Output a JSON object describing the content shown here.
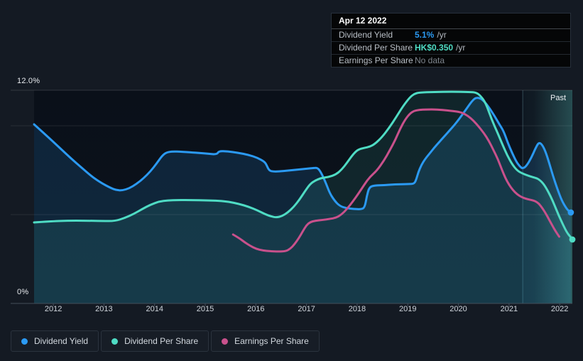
{
  "past_label": "Past",
  "axis": {
    "y_top_label": "12.0%",
    "y_bottom_label": "0%"
  },
  "tooltip": {
    "date": "Apr 12 2022",
    "rows": [
      {
        "label": "Dividend Yield",
        "value": "5.1%",
        "unit": "/yr",
        "value_color": "#2b9af3",
        "muted": false
      },
      {
        "label": "Dividend Per Share",
        "value": "HK$0.350",
        "unit": "/yr",
        "value_color": "#4fdcc4",
        "muted": false
      },
      {
        "label": "Earnings Per Share",
        "value": "No data",
        "unit": "",
        "value_color": "#7d848c",
        "muted": true
      }
    ]
  },
  "legend": [
    {
      "label": "Dividend Yield",
      "color": "#2b9af3"
    },
    {
      "label": "Dividend Per Share",
      "color": "#4fdcc4"
    },
    {
      "label": "Earnings Per Share",
      "color": "#c9518c"
    }
  ],
  "chart_data": {
    "type": "line",
    "title": "Dividend history (past) — hovered at Apr 12 2022",
    "x_axis": {
      "range": [
        2011.62,
        2022.25
      ],
      "ticks": [
        2012,
        2013,
        2014,
        2015,
        2016,
        2017,
        2018,
        2019,
        2020,
        2021,
        2022
      ]
    },
    "y_axis": {
      "range": [
        0,
        12
      ],
      "unit": "%",
      "top_label": "12.0%",
      "bottom_label": "0%",
      "gridline_values": [
        12,
        10,
        5,
        0
      ]
    },
    "past_region_start": 2021.27,
    "hover_values": {
      "dividend_yield_pct": 5.1,
      "dividend_per_share": "HK$0.350",
      "earnings_per_share": null
    },
    "series": [
      {
        "name": "Dividend Yield",
        "color": "#2b9af3",
        "fill": "rgba(43,154,243,0.15)",
        "end_dot": true,
        "points": [
          [
            2011.62,
            10.08
          ],
          [
            2011.76,
            9.72
          ],
          [
            2011.93,
            9.28
          ],
          [
            2012.14,
            8.72
          ],
          [
            2012.35,
            8.16
          ],
          [
            2012.56,
            7.64
          ],
          [
            2012.77,
            7.12
          ],
          [
            2012.96,
            6.76
          ],
          [
            2013.12,
            6.52
          ],
          [
            2013.24,
            6.38
          ],
          [
            2013.36,
            6.36
          ],
          [
            2013.5,
            6.48
          ],
          [
            2013.64,
            6.72
          ],
          [
            2013.78,
            7.04
          ],
          [
            2013.92,
            7.44
          ],
          [
            2014.04,
            7.88
          ],
          [
            2014.15,
            8.32
          ],
          [
            2014.23,
            8.5
          ],
          [
            2014.35,
            8.56
          ],
          [
            2014.53,
            8.54
          ],
          [
            2014.74,
            8.5
          ],
          [
            2015.02,
            8.44
          ],
          [
            2015.23,
            8.38
          ],
          [
            2015.27,
            8.58
          ],
          [
            2015.44,
            8.56
          ],
          [
            2015.65,
            8.48
          ],
          [
            2015.86,
            8.36
          ],
          [
            2016.03,
            8.2
          ],
          [
            2016.17,
            7.98
          ],
          [
            2016.21,
            7.8
          ],
          [
            2016.26,
            7.48
          ],
          [
            2016.35,
            7.42
          ],
          [
            2016.49,
            7.44
          ],
          [
            2016.71,
            7.5
          ],
          [
            2016.92,
            7.56
          ],
          [
            2017.13,
            7.62
          ],
          [
            2017.22,
            7.64
          ],
          [
            2017.29,
            7.36
          ],
          [
            2017.38,
            6.8
          ],
          [
            2017.46,
            6.2
          ],
          [
            2017.56,
            5.76
          ],
          [
            2017.66,
            5.48
          ],
          [
            2017.79,
            5.36
          ],
          [
            2017.93,
            5.32
          ],
          [
            2018.08,
            5.3
          ],
          [
            2018.15,
            5.4
          ],
          [
            2018.19,
            6.04
          ],
          [
            2018.24,
            6.56
          ],
          [
            2018.35,
            6.64
          ],
          [
            2018.53,
            6.66
          ],
          [
            2018.74,
            6.7
          ],
          [
            2019.02,
            6.72
          ],
          [
            2019.13,
            6.74
          ],
          [
            2019.17,
            7.0
          ],
          [
            2019.21,
            7.4
          ],
          [
            2019.27,
            7.8
          ],
          [
            2019.34,
            8.12
          ],
          [
            2019.42,
            8.4
          ],
          [
            2019.52,
            8.76
          ],
          [
            2019.62,
            9.08
          ],
          [
            2019.72,
            9.4
          ],
          [
            2019.82,
            9.72
          ],
          [
            2019.92,
            10.04
          ],
          [
            2020.02,
            10.4
          ],
          [
            2020.1,
            10.72
          ],
          [
            2020.19,
            11.08
          ],
          [
            2020.26,
            11.36
          ],
          [
            2020.33,
            11.56
          ],
          [
            2020.4,
            11.58
          ],
          [
            2020.47,
            11.48
          ],
          [
            2020.55,
            11.24
          ],
          [
            2020.63,
            10.92
          ],
          [
            2020.72,
            10.52
          ],
          [
            2020.8,
            10.12
          ],
          [
            2020.89,
            9.72
          ],
          [
            2020.97,
            9.08
          ],
          [
            2021.06,
            8.48
          ],
          [
            2021.14,
            8.0
          ],
          [
            2021.21,
            7.72
          ],
          [
            2021.27,
            7.58
          ],
          [
            2021.35,
            7.76
          ],
          [
            2021.44,
            8.2
          ],
          [
            2021.52,
            8.72
          ],
          [
            2021.59,
            9.08
          ],
          [
            2021.66,
            8.92
          ],
          [
            2021.73,
            8.48
          ],
          [
            2021.8,
            7.84
          ],
          [
            2021.87,
            7.16
          ],
          [
            2021.96,
            6.4
          ],
          [
            2022.04,
            5.8
          ],
          [
            2022.13,
            5.36
          ],
          [
            2022.18,
            5.2
          ],
          [
            2022.22,
            5.12
          ]
        ]
      },
      {
        "name": "Dividend Per Share",
        "color": "#4fdcc4",
        "fill": "rgba(82,224,196,0.10)",
        "end_dot": true,
        "points": [
          [
            2011.62,
            4.56
          ],
          [
            2011.93,
            4.62
          ],
          [
            2012.28,
            4.66
          ],
          [
            2012.63,
            4.66
          ],
          [
            2012.98,
            4.64
          ],
          [
            2013.22,
            4.64
          ],
          [
            2013.4,
            4.8
          ],
          [
            2013.59,
            5.04
          ],
          [
            2013.76,
            5.32
          ],
          [
            2013.92,
            5.56
          ],
          [
            2014.09,
            5.74
          ],
          [
            2014.26,
            5.8
          ],
          [
            2014.46,
            5.82
          ],
          [
            2014.74,
            5.82
          ],
          [
            2015.02,
            5.8
          ],
          [
            2015.27,
            5.78
          ],
          [
            2015.47,
            5.72
          ],
          [
            2015.67,
            5.6
          ],
          [
            2015.86,
            5.44
          ],
          [
            2016.03,
            5.24
          ],
          [
            2016.17,
            5.04
          ],
          [
            2016.3,
            4.9
          ],
          [
            2016.41,
            4.84
          ],
          [
            2016.52,
            4.92
          ],
          [
            2016.63,
            5.12
          ],
          [
            2016.75,
            5.44
          ],
          [
            2016.86,
            5.84
          ],
          [
            2016.97,
            6.32
          ],
          [
            2017.07,
            6.72
          ],
          [
            2017.17,
            6.92
          ],
          [
            2017.29,
            7.06
          ],
          [
            2017.44,
            7.12
          ],
          [
            2017.58,
            7.26
          ],
          [
            2017.69,
            7.52
          ],
          [
            2017.8,
            7.92
          ],
          [
            2017.91,
            8.36
          ],
          [
            2018.01,
            8.66
          ],
          [
            2018.14,
            8.76
          ],
          [
            2018.25,
            8.82
          ],
          [
            2018.36,
            9.0
          ],
          [
            2018.49,
            9.36
          ],
          [
            2018.63,
            9.88
          ],
          [
            2018.77,
            10.48
          ],
          [
            2018.91,
            11.12
          ],
          [
            2019.04,
            11.6
          ],
          [
            2019.13,
            11.8
          ],
          [
            2019.23,
            11.88
          ],
          [
            2019.51,
            11.9
          ],
          [
            2019.87,
            11.92
          ],
          [
            2020.22,
            11.9
          ],
          [
            2020.35,
            11.88
          ],
          [
            2020.44,
            11.68
          ],
          [
            2020.54,
            11.28
          ],
          [
            2020.65,
            10.4
          ],
          [
            2020.78,
            9.56
          ],
          [
            2020.88,
            8.88
          ],
          [
            2020.96,
            8.36
          ],
          [
            2021.06,
            7.84
          ],
          [
            2021.16,
            7.48
          ],
          [
            2021.26,
            7.32
          ],
          [
            2021.37,
            7.2
          ],
          [
            2021.48,
            7.1
          ],
          [
            2021.56,
            7.04
          ],
          [
            2021.65,
            6.84
          ],
          [
            2021.73,
            6.52
          ],
          [
            2021.82,
            6.04
          ],
          [
            2021.9,
            5.52
          ],
          [
            2021.98,
            4.96
          ],
          [
            2022.07,
            4.4
          ],
          [
            2022.15,
            3.96
          ],
          [
            2022.21,
            3.76
          ],
          [
            2022.25,
            3.6
          ]
        ]
      },
      {
        "name": "Earnings Per Share",
        "color": "#c9518c",
        "fill": null,
        "end_dot": false,
        "points": [
          [
            2015.55,
            3.88
          ],
          [
            2015.67,
            3.68
          ],
          [
            2015.78,
            3.44
          ],
          [
            2015.89,
            3.24
          ],
          [
            2016.0,
            3.08
          ],
          [
            2016.14,
            2.98
          ],
          [
            2016.28,
            2.94
          ],
          [
            2016.45,
            2.92
          ],
          [
            2016.59,
            2.94
          ],
          [
            2016.68,
            3.08
          ],
          [
            2016.76,
            3.32
          ],
          [
            2016.85,
            3.68
          ],
          [
            2016.93,
            4.08
          ],
          [
            2017.0,
            4.4
          ],
          [
            2017.07,
            4.58
          ],
          [
            2017.18,
            4.66
          ],
          [
            2017.32,
            4.7
          ],
          [
            2017.46,
            4.76
          ],
          [
            2017.58,
            4.82
          ],
          [
            2017.69,
            5.0
          ],
          [
            2017.8,
            5.32
          ],
          [
            2017.91,
            5.72
          ],
          [
            2018.03,
            6.2
          ],
          [
            2018.14,
            6.68
          ],
          [
            2018.25,
            7.12
          ],
          [
            2018.39,
            7.48
          ],
          [
            2018.53,
            8.04
          ],
          [
            2018.64,
            8.6
          ],
          [
            2018.76,
            9.24
          ],
          [
            2018.85,
            9.84
          ],
          [
            2018.95,
            10.36
          ],
          [
            2019.04,
            10.68
          ],
          [
            2019.12,
            10.84
          ],
          [
            2019.23,
            10.9
          ],
          [
            2019.37,
            10.92
          ],
          [
            2019.58,
            10.92
          ],
          [
            2019.79,
            10.86
          ],
          [
            2019.98,
            10.8
          ],
          [
            2020.07,
            10.74
          ],
          [
            2020.19,
            10.56
          ],
          [
            2020.3,
            10.28
          ],
          [
            2020.4,
            9.96
          ],
          [
            2020.5,
            9.6
          ],
          [
            2020.6,
            9.16
          ],
          [
            2020.69,
            8.64
          ],
          [
            2020.78,
            8.12
          ],
          [
            2020.86,
            7.52
          ],
          [
            2020.93,
            7.04
          ],
          [
            2021.0,
            6.68
          ],
          [
            2021.07,
            6.4
          ],
          [
            2021.16,
            6.14
          ],
          [
            2021.25,
            5.98
          ],
          [
            2021.35,
            5.88
          ],
          [
            2021.45,
            5.82
          ],
          [
            2021.52,
            5.76
          ],
          [
            2021.59,
            5.62
          ],
          [
            2021.66,
            5.36
          ],
          [
            2021.73,
            5.04
          ],
          [
            2021.79,
            4.72
          ],
          [
            2021.86,
            4.36
          ],
          [
            2021.92,
            4.06
          ],
          [
            2021.99,
            3.76
          ]
        ]
      }
    ]
  }
}
